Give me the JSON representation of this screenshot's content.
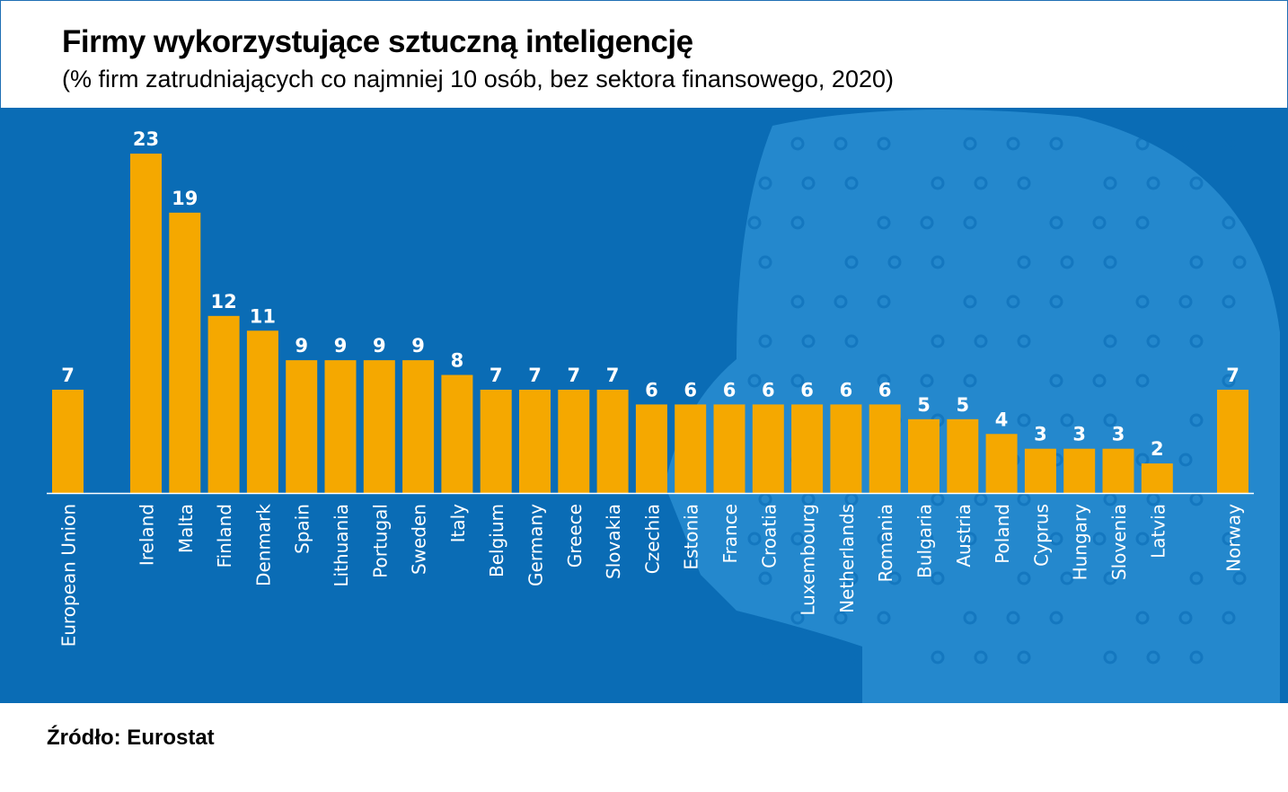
{
  "header": {
    "title": "Firmy wykorzystujące sztuczną inteligencję",
    "subtitle": "(% firm zatrudniających co najmniej 10 osób, bez sektora finansowego, 2020)"
  },
  "source": "Źródło: Eurostat",
  "colors": {
    "background": "#0a6cb5",
    "bar": "#f5a800",
    "decoration": "#3aa0e0",
    "text": "#ffffff"
  },
  "chart_data": {
    "type": "bar",
    "title": "Firmy wykorzystujące sztuczną inteligencję",
    "subtitle": "(% firm zatrudniających co najmniej 10 osób, bez sektora finansowego, 2020)",
    "categories": [
      "European Union",
      "Ireland",
      "Malta",
      "Finland",
      "Denmark",
      "Spain",
      "Lithuania",
      "Portugal",
      "Sweden",
      "Italy",
      "Belgium",
      "Germany",
      "Greece",
      "Slovakia",
      "Czechia",
      "Estonia",
      "France",
      "Croatia",
      "Luxembourg",
      "Netherlands",
      "Romania",
      "Bulgaria",
      "Austria",
      "Poland",
      "Cyprus",
      "Hungary",
      "Slovenia",
      "Latvia",
      "Norway"
    ],
    "values": [
      7,
      23,
      19,
      12,
      11,
      9,
      9,
      9,
      9,
      8,
      7,
      7,
      7,
      7,
      6,
      6,
      6,
      6,
      6,
      6,
      6,
      5,
      5,
      4,
      3,
      3,
      3,
      2,
      7
    ],
    "ylim": [
      0,
      23
    ],
    "grid": false,
    "legend": "none"
  }
}
